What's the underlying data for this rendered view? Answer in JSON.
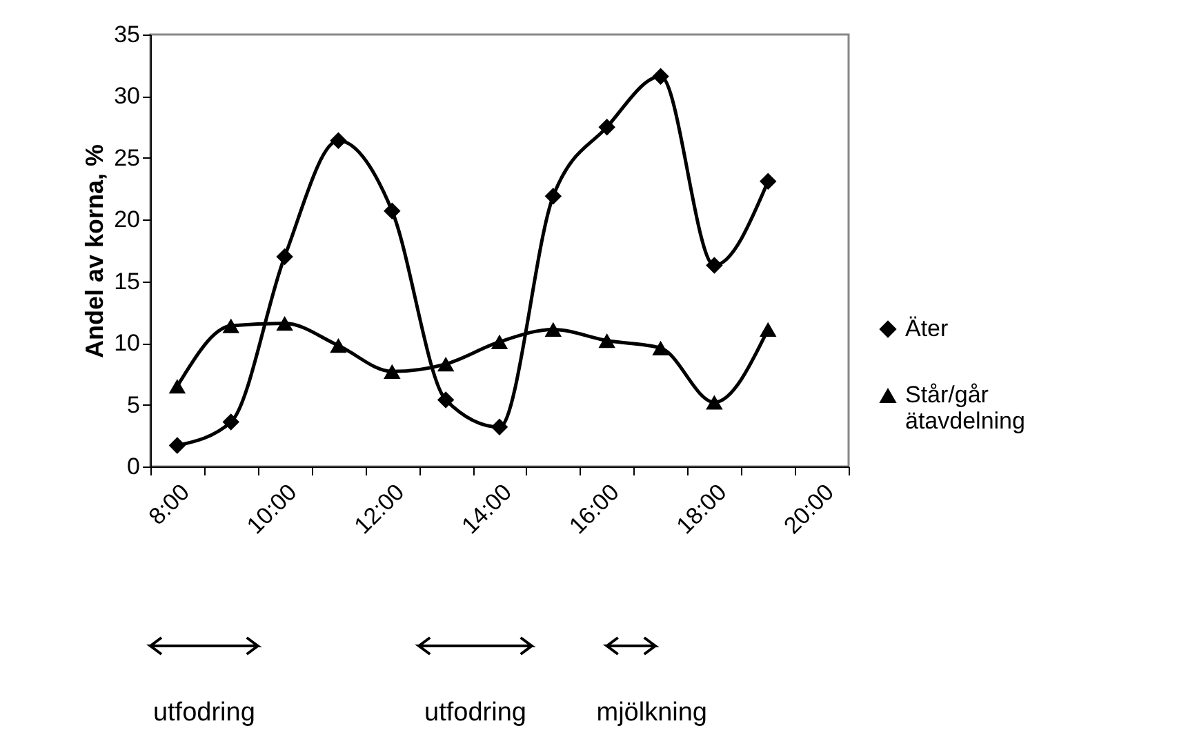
{
  "chart_data": {
    "type": "line",
    "ylabel": "Andel av korna, %",
    "categories": [
      "8:00",
      null,
      "10:00",
      null,
      "12:00",
      null,
      "14:00",
      null,
      "16:00",
      null,
      "18:00",
      null,
      "20:00"
    ],
    "series": [
      {
        "name": "Äter",
        "color": "#000000",
        "marker": "diamond",
        "values": [
          1.7,
          3.6,
          17.0,
          26.4,
          20.7,
          5.4,
          3.2,
          21.9,
          27.5,
          31.6,
          16.3,
          23.1,
          null
        ]
      },
      {
        "name": "Står/går ätavdelning",
        "color": "#000000",
        "marker": "triangle",
        "values": [
          6.5,
          11.4,
          11.6,
          9.8,
          7.7,
          8.3,
          10.1,
          11.1,
          10.2,
          9.6,
          5.2,
          11.1,
          null
        ]
      }
    ],
    "ylim": [
      0,
      35
    ],
    "yticks": [
      0,
      5,
      10,
      15,
      20,
      25,
      30,
      35
    ],
    "grid": false,
    "legend": "right",
    "line_style": "solid",
    "annotations": [
      "utfodring",
      "utfodring",
      "mjölkning"
    ]
  }
}
